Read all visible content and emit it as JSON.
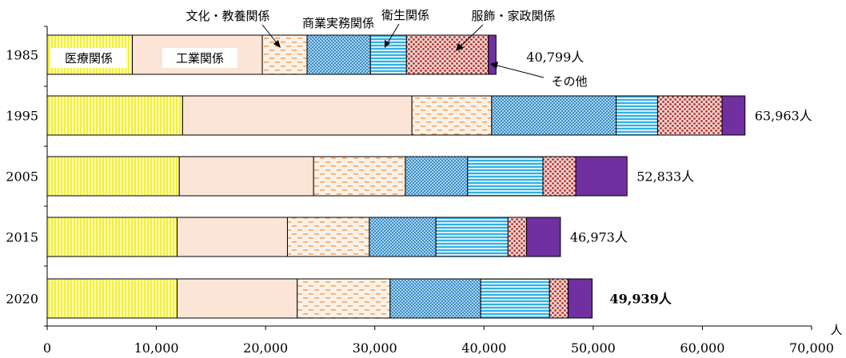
{
  "chart_data": {
    "type": "bar",
    "orientation": "horizontal",
    "stacked": true,
    "categories": [
      "1985",
      "1995",
      "2005",
      "2015",
      "2020"
    ],
    "series": [
      {
        "name": "医療関係",
        "color": "#f7f45a",
        "pattern": "vertical-stripes",
        "values": [
          7800,
          12400,
          12100,
          11900,
          11900
        ]
      },
      {
        "name": "工業関係",
        "color": "#fce4d6",
        "pattern": "solid",
        "values": [
          11900,
          21000,
          12300,
          10100,
          11000
        ]
      },
      {
        "name": "文化・教養関係",
        "color": "#f4b183",
        "pattern": "dashes",
        "values": [
          4100,
          7300,
          8400,
          7500,
          8500
        ]
      },
      {
        "name": "商業実務関係",
        "color": "#5ba3d9",
        "pattern": "checker",
        "values": [
          5800,
          11400,
          5700,
          6100,
          8300
        ]
      },
      {
        "name": "衛生関係",
        "color": "#4fb8e8",
        "pattern": "horizontal-stripes",
        "values": [
          3300,
          3800,
          6900,
          6600,
          6300
        ]
      },
      {
        "name": "服飾・家政関係",
        "color": "#c0504d",
        "pattern": "dots",
        "values": [
          7500,
          5900,
          3000,
          1700,
          1700
        ]
      },
      {
        "name": "その他",
        "color": "#7030a0",
        "pattern": "solid",
        "values": [
          700,
          2100,
          4700,
          3100,
          2200
        ]
      }
    ],
    "totals": [
      "40,799人",
      "63,963人",
      "52,833人",
      "46,973人",
      "49,939人"
    ],
    "totals_bold": [
      false,
      false,
      false,
      false,
      true
    ],
    "xlim": [
      0,
      70000
    ],
    "xticks": [
      0,
      10000,
      20000,
      30000,
      40000,
      50000,
      60000,
      70000
    ],
    "xtick_labels": [
      "0",
      "10,000",
      "20,000",
      "30,000",
      "40,000",
      "50,000",
      "60,000",
      "70,000"
    ],
    "xunit": "人",
    "grid": false,
    "annotations": {
      "inside_label_1": "医療関係",
      "inside_label_2": "工業関係",
      "callout_culture": "文化・教養関係",
      "callout_commerce": "商業実務関係",
      "callout_hygiene": "衛生関係",
      "callout_apparel": "服飾・家政関係",
      "callout_other": "その他"
    }
  }
}
